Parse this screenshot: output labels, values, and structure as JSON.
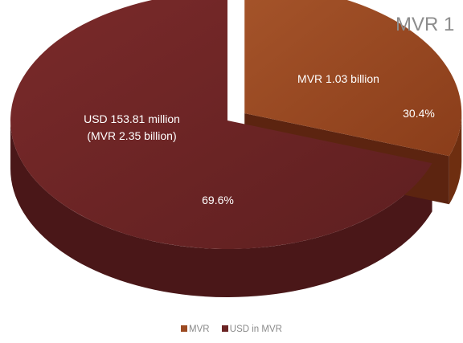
{
  "chart_data": {
    "type": "pie",
    "title": "MVR 1",
    "series": [
      {
        "name": "MVR",
        "value": 30.4,
        "percent_label": "30.4%",
        "label": "MVR 1.03 billion",
        "color": "#9c4a22",
        "exploded": true
      },
      {
        "name": "USD in MVR",
        "value": 69.6,
        "percent_label": "69.6%",
        "label_lines": [
          "USD 153.81 million",
          "(MVR 2.35 billion)"
        ],
        "color": "#6b2424"
      }
    ],
    "legend_position": "bottom"
  }
}
